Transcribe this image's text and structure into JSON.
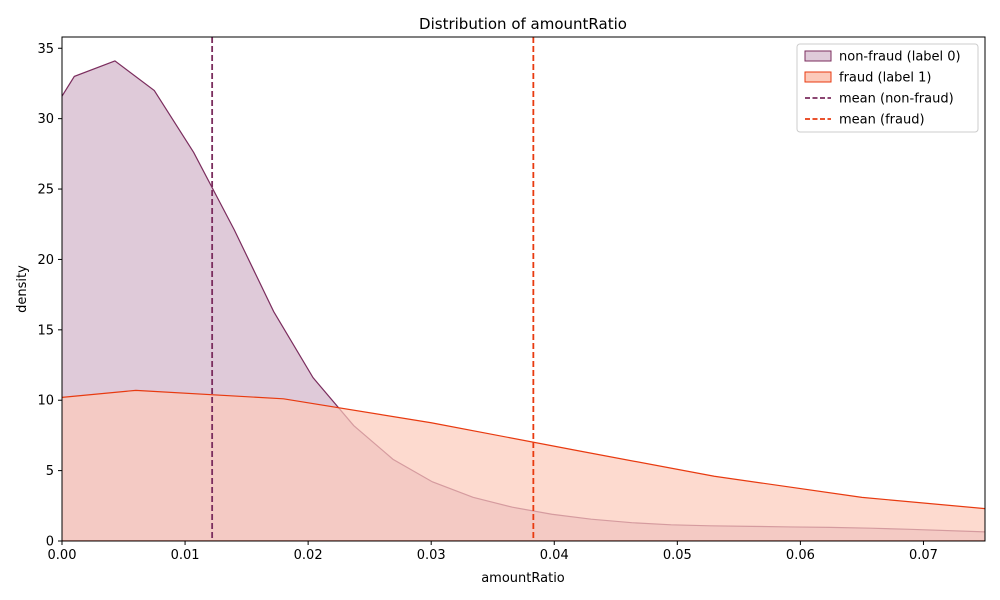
{
  "chart_data": {
    "type": "area",
    "title": "Distribution of amountRatio",
    "xlabel": "amountRatio",
    "ylabel": "density",
    "xlim": [
      0,
      0.075
    ],
    "ylim": [
      0,
      35.8
    ],
    "xticks": [
      0.0,
      0.01,
      0.02,
      0.03,
      0.04,
      0.05,
      0.06,
      0.07
    ],
    "xtick_labels": [
      "0.00",
      "0.01",
      "0.02",
      "0.03",
      "0.04",
      "0.05",
      "0.06",
      "0.07"
    ],
    "yticks": [
      0,
      5,
      10,
      15,
      20,
      25,
      30,
      35
    ],
    "ytick_labels": [
      "0",
      "5",
      "10",
      "15",
      "20",
      "25",
      "30",
      "35"
    ],
    "grid": false,
    "legend_position": "top-right",
    "series": [
      {
        "name": "non-fraud (label 0)",
        "line_color": "#7b2d5e",
        "fill_color": "#dfcad9",
        "x": [
          0.0,
          0.001,
          0.0043,
          0.0075,
          0.0107,
          0.014,
          0.0172,
          0.0204,
          0.0237,
          0.0269,
          0.0301,
          0.0334,
          0.0366,
          0.0398,
          0.043,
          0.0463,
          0.0495,
          0.0527,
          0.056,
          0.0592,
          0.0624,
          0.0657,
          0.0689,
          0.075
        ],
        "y": [
          31.6,
          33.0,
          34.1,
          32.0,
          27.6,
          22.1,
          16.3,
          11.6,
          8.2,
          5.8,
          4.2,
          3.1,
          2.4,
          1.9,
          1.55,
          1.3,
          1.15,
          1.08,
          1.04,
          1.0,
          0.97,
          0.91,
          0.83,
          0.65
        ]
      },
      {
        "name": "fraud (label 1)",
        "line_color": "#e83a10",
        "fill_color": "#fccaba",
        "x": [
          0.0,
          0.006,
          0.018,
          0.03,
          0.042,
          0.053,
          0.065,
          0.075
        ],
        "y": [
          10.2,
          10.7,
          10.1,
          8.4,
          6.4,
          4.6,
          3.1,
          2.3
        ]
      }
    ],
    "reference_lines": [
      {
        "name": "mean (non-fraud)",
        "x": 0.0122,
        "color": "#7b2d5e",
        "style": "dashed"
      },
      {
        "name": "mean (fraud)",
        "x": 0.0383,
        "color": "#e83a10",
        "style": "dashed"
      }
    ]
  }
}
